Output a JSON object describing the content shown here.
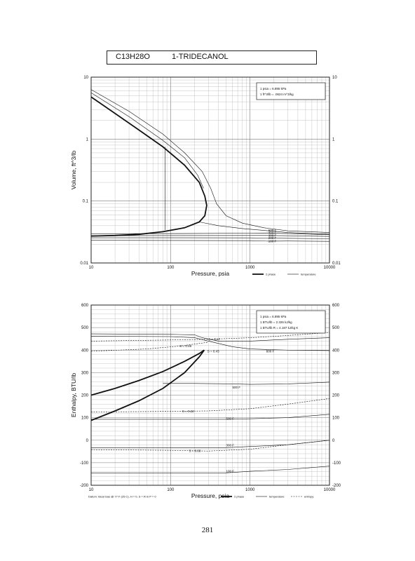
{
  "header": {
    "formula": "C13H28O",
    "name": "1-TRIDECANOL"
  },
  "page_number": "281",
  "chart_data": [
    {
      "type": "line",
      "xscale": "log",
      "yscale": "log",
      "xlim": [
        10,
        10000
      ],
      "ylim": [
        0.01,
        10
      ],
      "xlabel": "Pressure, psia",
      "ylabel": "Volume, ft^3/lb",
      "xticks": [
        "10",
        "100",
        "1000",
        "10000"
      ],
      "yticks": [
        "0.01",
        "0.1",
        "1",
        "10"
      ],
      "conversion_notes": [
        "1 psia = 6.895 kPa",
        "1 ft^3/lb = .0624 m^3/kg"
      ],
      "legend": [
        "2 phase",
        "temperature"
      ],
      "isotherm_labels": [
        {
          "text": "500 F",
          "x": 1700,
          "y": 0.0335
        },
        {
          "text": "400 F",
          "x": 1700,
          "y": 0.0305
        },
        {
          "text": "300 F",
          "x": 1700,
          "y": 0.0278
        },
        {
          "text": "200 F",
          "x": 1700,
          "y": 0.0252
        },
        {
          "text": "100 F",
          "x": 1700,
          "y": 0.0225
        }
      ],
      "series": [
        {
          "role": "2 phase",
          "x": [
            10,
            20,
            40,
            80,
            150,
            230,
            270,
            285,
            270,
            230,
            150,
            80,
            40,
            20,
            10
          ],
          "y": [
            4.8,
            2.6,
            1.4,
            0.75,
            0.38,
            0.2,
            0.12,
            0.085,
            0.058,
            0.046,
            0.037,
            0.032,
            0.029,
            0.0278,
            0.0272
          ]
        },
        {
          "role": "temperature",
          "x": [
            10,
            30,
            80,
            150,
            250,
            320,
            380,
            500,
            800,
            1500,
            3000,
            10000
          ],
          "y": [
            6.3,
            2.8,
            1.2,
            0.6,
            0.3,
            0.16,
            0.09,
            0.058,
            0.044,
            0.037,
            0.033,
            0.031
          ]
        },
        {
          "role": "temperature",
          "x": [
            10,
            30,
            80,
            150,
            220,
            260
          ],
          "y": [
            5.6,
            2.3,
            0.95,
            0.5,
            0.26,
            0.16
          ]
        },
        {
          "role": "temperature",
          "x": [
            85,
            85
          ],
          "y": [
            0.75,
            0.034
          ]
        },
        {
          "role": "temperature",
          "x": [
            230,
            400,
            800,
            1500,
            3000,
            10000
          ],
          "y": [
            0.046,
            0.04,
            0.036,
            0.0335,
            0.031,
            0.0292
          ]
        },
        {
          "role": "temperature",
          "x": [
            10,
            100,
            1000,
            1700,
            3000,
            10000
          ],
          "y": [
            0.0295,
            0.0298,
            0.0303,
            0.0305,
            0.0298,
            0.0285
          ]
        },
        {
          "role": "temperature",
          "x": [
            10,
            100,
            1000,
            1700,
            3000,
            10000
          ],
          "y": [
            0.0276,
            0.0277,
            0.0278,
            0.0278,
            0.0275,
            0.0268
          ]
        },
        {
          "role": "temperature",
          "x": [
            10,
            100,
            1000,
            1700,
            3000,
            10000
          ],
          "y": [
            0.0255,
            0.0255,
            0.0254,
            0.0252,
            0.025,
            0.0246
          ]
        },
        {
          "role": "temperature",
          "x": [
            10,
            100,
            1000,
            1700,
            3000,
            10000
          ],
          "y": [
            0.0232,
            0.0231,
            0.0229,
            0.0225,
            0.0226,
            0.0223
          ]
        }
      ]
    },
    {
      "type": "line",
      "xscale": "log",
      "yscale": "linear",
      "xlim": [
        10,
        10000
      ],
      "ylim": [
        -200,
        600
      ],
      "xlabel": "Pressure, psia",
      "ylabel": "Enthalpy, BTU/lb",
      "xticks": [
        "10",
        "100",
        "1000",
        "10000"
      ],
      "yticks": [
        "-200",
        "-100",
        "0",
        "100",
        "200",
        "300",
        "400",
        "500",
        "600"
      ],
      "conversion_notes": [
        "1 psia = 6.895 kPa",
        "1 BTU/lb = 2.326 kJ/kg",
        "1 BTU/lb R = 4.187 kJ/kg K"
      ],
      "legend": [
        "2 phase",
        "temperature",
        "entropy"
      ],
      "footnote": "Datum: Ideal Gas @ 77 F (25 C),  H = 0,  S = R ln P = 0",
      "isotherm_labels": [
        {
          "text": "600 F",
          "x": 1600,
          "y": 395
        },
        {
          "text": "500 F",
          "x": 600,
          "y": 235
        },
        {
          "text": "500 F",
          "x": 500,
          "y": 95
        },
        {
          "text": "300 F",
          "x": 500,
          "y": -22
        },
        {
          "text": "100 F",
          "x": 500,
          "y": -138
        }
      ],
      "entropy_labels": [
        {
          "text": "S = 0.47",
          "x": 300,
          "y": 448
        },
        {
          "text": "S = 0.46",
          "x": 130,
          "y": 418
        },
        {
          "text": "S = 0.43",
          "x": 290,
          "y": 395
        },
        {
          "text": "S = 0.22",
          "x": 140,
          "y": 128
        },
        {
          "text": "S = 0.00",
          "x": 170,
          "y": -48
        }
      ],
      "series": [
        {
          "role": "2 phase",
          "x": [
            10,
            20,
            40,
            80,
            150,
            230,
            265,
            230,
            150,
            80,
            40,
            20,
            10
          ],
          "y": [
            200,
            230,
            265,
            305,
            350,
            385,
            400,
            370,
            300,
            230,
            175,
            130,
            88
          ]
        },
        {
          "role": "temperature",
          "x": [
            10,
            100,
            200,
            300,
            600,
            1000,
            3000,
            10000
          ],
          "y": [
            462,
            460,
            455,
            440,
            415,
            405,
            400,
            398
          ]
        },
        {
          "role": "temperature",
          "x": [
            10,
            100,
            200,
            250,
            400,
            1000,
            3000,
            10000
          ],
          "y": [
            472,
            470,
            468,
            455,
            440,
            440,
            448,
            455
          ]
        },
        {
          "role": "temperature",
          "x": [
            80,
            200,
            600,
            1000,
            3000,
            10000
          ],
          "y": [
            252,
            252,
            250,
            248,
            250,
            258
          ]
        },
        {
          "role": "temperature",
          "x": [
            10,
            100,
            500,
            1000,
            3000,
            10000
          ],
          "y": [
            93,
            93,
            93,
            95,
            100,
            115
          ]
        },
        {
          "role": "temperature",
          "x": [
            10,
            100,
            500,
            1000,
            3000,
            10000
          ],
          "y": [
            -33,
            -33,
            -33,
            -28,
            -20,
            0
          ]
        },
        {
          "role": "temperature",
          "x": [
            10,
            100,
            500,
            1000,
            3000,
            10000
          ],
          "y": [
            -145,
            -145,
            -145,
            -138,
            -130,
            -115
          ]
        },
        {
          "role": "entropy",
          "x": [
            10,
            100,
            300,
            1000,
            3000,
            10000
          ],
          "y": [
            440,
            445,
            448,
            455,
            465,
            478
          ]
        },
        {
          "role": "entropy",
          "x": [
            10,
            50,
            130,
            300
          ],
          "y": [
            395,
            405,
            418,
            435
          ]
        },
        {
          "role": "entropy",
          "x": [
            10,
            100,
            300,
            1000,
            3000,
            10000
          ],
          "y": [
            125,
            128,
            130,
            140,
            160,
            185
          ]
        },
        {
          "role": "entropy",
          "x": [
            10,
            100,
            300,
            1000,
            3000,
            10000
          ],
          "y": [
            -42,
            -45,
            -48,
            -40,
            -20,
            0
          ]
        }
      ]
    }
  ]
}
